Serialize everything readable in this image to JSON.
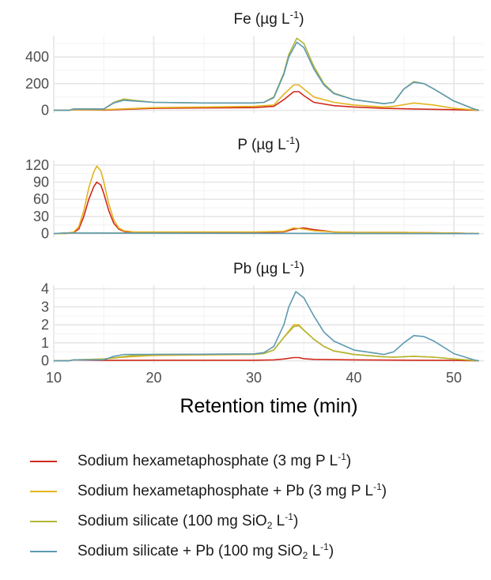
{
  "chart_data": {
    "type": "line",
    "xlabel": "Retention time (min)",
    "xlim": [
      10,
      53
    ],
    "xticks": [
      10,
      20,
      30,
      40,
      50
    ],
    "colors": {
      "Sodium hexametaphosphate (3 mg P L-1)": "#d2291c",
      "Sodium hexametaphosphate + Pb (3 mg P L-1)": "#e3b41f",
      "Sodium silicate (100 mg SiO2 L-1)": "#b3b536",
      "Sodium silicate + Pb (100 mg SiO2 L-1)": "#5d9ab3"
    },
    "legend": [
      {
        "name": "Sodium hexametaphosphate (3 mg P L-1)",
        "pre": "Sodium hexametaphosphate (3 mg P L",
        "sup": "-1",
        "post": ")"
      },
      {
        "name": "Sodium hexametaphosphate + Pb (3 mg P L-1)",
        "pre": "Sodium hexametaphosphate + Pb (3 mg P L",
        "sup": "-1",
        "post": ")"
      },
      {
        "name": "Sodium silicate (100 mg SiO2 L-1)",
        "pre": "Sodium silicate (100 mg SiO",
        "sub": "2",
        "mid": " L",
        "sup": "-1",
        "post": ")"
      },
      {
        "name": "Sodium silicate + Pb (100 mg SiO2 L-1)",
        "pre": "Sodium silicate + Pb (100 mg SiO",
        "sub": "2",
        "mid": " L",
        "sup": "-1",
        "post": ")"
      }
    ],
    "panels": [
      {
        "id": "fe",
        "title_pre": "Fe (µg L",
        "title_sup": "-1",
        "title_post": ")",
        "ylim": [
          -20,
          560
        ],
        "yticks": [
          0,
          200,
          400
        ],
        "series": [
          {
            "name": "Sodium hexametaphosphate (3 mg P L-1)",
            "x": [
              10,
              11.5,
              12,
              15,
              20,
              25,
              30,
              32,
              33,
              34,
              34.5,
              35,
              36,
              38,
              40,
              43,
              46,
              50,
              52.5
            ],
            "y": [
              0,
              0,
              5,
              2,
              15,
              18,
              20,
              30,
              80,
              140,
              140,
              110,
              60,
              35,
              25,
              15,
              10,
              5,
              0
            ]
          },
          {
            "name": "Sodium hexametaphosphate + Pb (3 mg P L-1)",
            "x": [
              10,
              11.5,
              12,
              15,
              20,
              25,
              30,
              32,
              33,
              34,
              34.5,
              35,
              36,
              38,
              40,
              43,
              44,
              46,
              48,
              50,
              52.5
            ],
            "y": [
              0,
              0,
              5,
              5,
              20,
              25,
              30,
              40,
              120,
              190,
              190,
              160,
              100,
              60,
              40,
              25,
              30,
              55,
              40,
              15,
              0
            ]
          },
          {
            "name": "Sodium silicate (100 mg SiO2 L-1)",
            "x": [
              10,
              11.5,
              12,
              15,
              16,
              17,
              18,
              20,
              25,
              30,
              31,
              32,
              33,
              33.5,
              34.3,
              35,
              36,
              37,
              38,
              40,
              43,
              44,
              45,
              46,
              47,
              48,
              50,
              52,
              52.5
            ],
            "y": [
              0,
              0,
              10,
              10,
              60,
              85,
              75,
              60,
              55,
              55,
              60,
              100,
              280,
              420,
              540,
              500,
              330,
              200,
              130,
              80,
              50,
              60,
              160,
              215,
              200,
              160,
              70,
              10,
              0
            ]
          },
          {
            "name": "Sodium silicate + Pb (100 mg SiO2 L-1)",
            "x": [
              10,
              11.5,
              12,
              15,
              16,
              17,
              18,
              20,
              25,
              30,
              31,
              32,
              33,
              33.5,
              34.3,
              35,
              36,
              37,
              38,
              40,
              43,
              44,
              45,
              46,
              47,
              48,
              50,
              52,
              52.5
            ],
            "y": [
              0,
              0,
              10,
              10,
              55,
              75,
              70,
              60,
              55,
              55,
              60,
              95,
              270,
              400,
              510,
              470,
              310,
              190,
              125,
              80,
              50,
              60,
              160,
              210,
              200,
              160,
              70,
              10,
              0
            ]
          }
        ]
      },
      {
        "id": "p",
        "title_pre": "P (µg L",
        "title_sup": "-1",
        "title_post": ")",
        "ylim": [
          -6,
          128
        ],
        "yticks": [
          0,
          30,
          60,
          90,
          120
        ],
        "series": [
          {
            "name": "Sodium hexametaphosphate (3 mg P L-1)",
            "x": [
              10,
              11,
              12,
              12.5,
              13,
              13.5,
              14,
              14.3,
              14.7,
              15,
              15.5,
              16,
              16.5,
              17,
              18,
              20,
              25,
              30,
              33,
              34,
              35,
              36,
              38,
              40,
              45,
              50,
              52.5
            ],
            "y": [
              0,
              0,
              2,
              8,
              30,
              60,
              82,
              90,
              85,
              70,
              40,
              18,
              8,
              4,
              2,
              2,
              2,
              2,
              3,
              8,
              10,
              7,
              3,
              2,
              2,
              1,
              0
            ]
          },
          {
            "name": "Sodium hexametaphosphate + Pb (3 mg P L-1)",
            "x": [
              10,
              11,
              12,
              12.5,
              13,
              13.5,
              14,
              14.3,
              14.7,
              15,
              15.5,
              16,
              16.5,
              17,
              18,
              20,
              25,
              30,
              33,
              34,
              35,
              36,
              38,
              40,
              45,
              50,
              52.5
            ],
            "y": [
              0,
              0,
              3,
              12,
              40,
              80,
              108,
              118,
              110,
              90,
              52,
              24,
              10,
              5,
              3,
              3,
              3,
              3,
              4,
              10,
              8,
              5,
              3,
              2,
              2,
              1,
              0
            ]
          },
          {
            "name": "Sodium silicate (100 mg SiO2 L-1)",
            "x": [
              10,
              11,
              52.5
            ],
            "y": [
              0,
              1,
              0
            ]
          },
          {
            "name": "Sodium silicate + Pb (100 mg SiO2 L-1)",
            "x": [
              10,
              11,
              52.5
            ],
            "y": [
              0,
              1,
              0
            ]
          }
        ]
      },
      {
        "id": "pb",
        "title_pre": "Pb (µg L",
        "title_sup": "-1",
        "title_post": ")",
        "ylim": [
          -0.15,
          4.2
        ],
        "yticks": [
          0,
          1,
          2,
          3,
          4
        ],
        "series": [
          {
            "name": "Sodium hexametaphosphate (3 mg P L-1)",
            "x": [
              10,
              11.5,
              12,
              15,
              20,
              30,
              32,
              33,
              34,
              34.5,
              35,
              36,
              40,
              46,
              50,
              52.5
            ],
            "y": [
              0,
              0,
              0.05,
              0.02,
              0.03,
              0.03,
              0.05,
              0.1,
              0.18,
              0.18,
              0.12,
              0.08,
              0.05,
              0.03,
              0.02,
              0
            ]
          },
          {
            "name": "Sodium hexametaphosphate + Pb (3 mg P L-1)",
            "x": [
              10,
              11.5,
              12,
              15,
              17,
              20,
              30,
              31,
              32,
              33,
              34,
              34.5,
              35,
              36,
              37,
              38,
              40,
              43,
              44,
              46,
              48,
              50,
              52.5
            ],
            "y": [
              0,
              0,
              0.05,
              0.1,
              0.2,
              0.3,
              0.35,
              0.4,
              0.6,
              1.3,
              2.0,
              2.0,
              1.7,
              1.2,
              0.8,
              0.55,
              0.35,
              0.22,
              0.2,
              0.25,
              0.2,
              0.1,
              0
            ]
          },
          {
            "name": "Sodium silicate (100 mg SiO2 L-1)",
            "x": [
              10,
              11.5,
              12,
              15,
              16.5,
              18,
              20,
              30,
              31,
              32,
              33,
              34,
              34.5,
              35,
              36,
              37,
              38,
              40,
              43,
              44,
              46,
              48,
              50,
              52.5
            ],
            "y": [
              0,
              0,
              0.05,
              0.1,
              0.2,
              0.3,
              0.35,
              0.38,
              0.4,
              0.6,
              1.3,
              1.9,
              1.95,
              1.7,
              1.2,
              0.8,
              0.55,
              0.35,
              0.22,
              0.2,
              0.25,
              0.2,
              0.1,
              0
            ]
          },
          {
            "name": "Sodium silicate + Pb (100 mg SiO2 L-1)",
            "x": [
              10,
              11.5,
              12,
              15,
              16,
              17,
              18,
              20,
              30,
              31,
              32,
              33,
              33.5,
              34.2,
              35,
              36,
              37,
              38,
              40,
              43,
              44,
              45,
              46,
              47,
              48,
              50,
              52,
              52.5
            ],
            "y": [
              0,
              0,
              0.05,
              0.05,
              0.25,
              0.35,
              0.35,
              0.35,
              0.38,
              0.45,
              0.8,
              2.0,
              3.0,
              3.85,
              3.5,
              2.5,
              1.6,
              1.1,
              0.6,
              0.35,
              0.5,
              1.0,
              1.4,
              1.35,
              1.1,
              0.4,
              0.05,
              0
            ]
          }
        ]
      }
    ]
  }
}
